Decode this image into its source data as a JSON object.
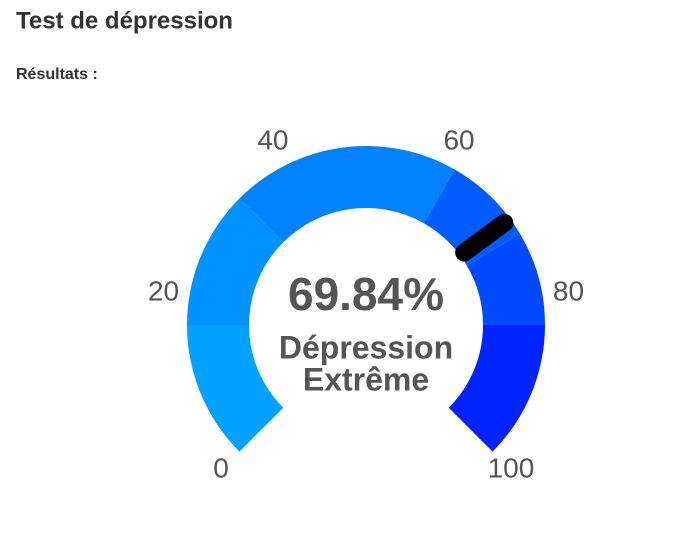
{
  "header": {
    "title": "Test de dépression",
    "subtitle": "Résultats :"
  },
  "chart_data": {
    "type": "gauge",
    "value": 69.84,
    "value_label": "69.84%",
    "status_lines": [
      "Dépression",
      "Extrême"
    ],
    "xlim": [
      0,
      100
    ],
    "xticks": [
      0,
      20,
      40,
      60,
      80,
      100
    ],
    "bands": [
      {
        "from": 0,
        "to": 16.67,
        "color": "#00a2ff"
      },
      {
        "from": 16.67,
        "to": 33.33,
        "color": "#0092ff"
      },
      {
        "from": 33.33,
        "to": 61,
        "color": "#0082ff"
      },
      {
        "from": 61,
        "to": 72,
        "color": "#005cff"
      },
      {
        "from": 72,
        "to": 83.33,
        "color": "#0049ff"
      },
      {
        "from": 83.33,
        "to": 100,
        "color": "#0024ff"
      }
    ],
    "needle_color": "#000000"
  }
}
